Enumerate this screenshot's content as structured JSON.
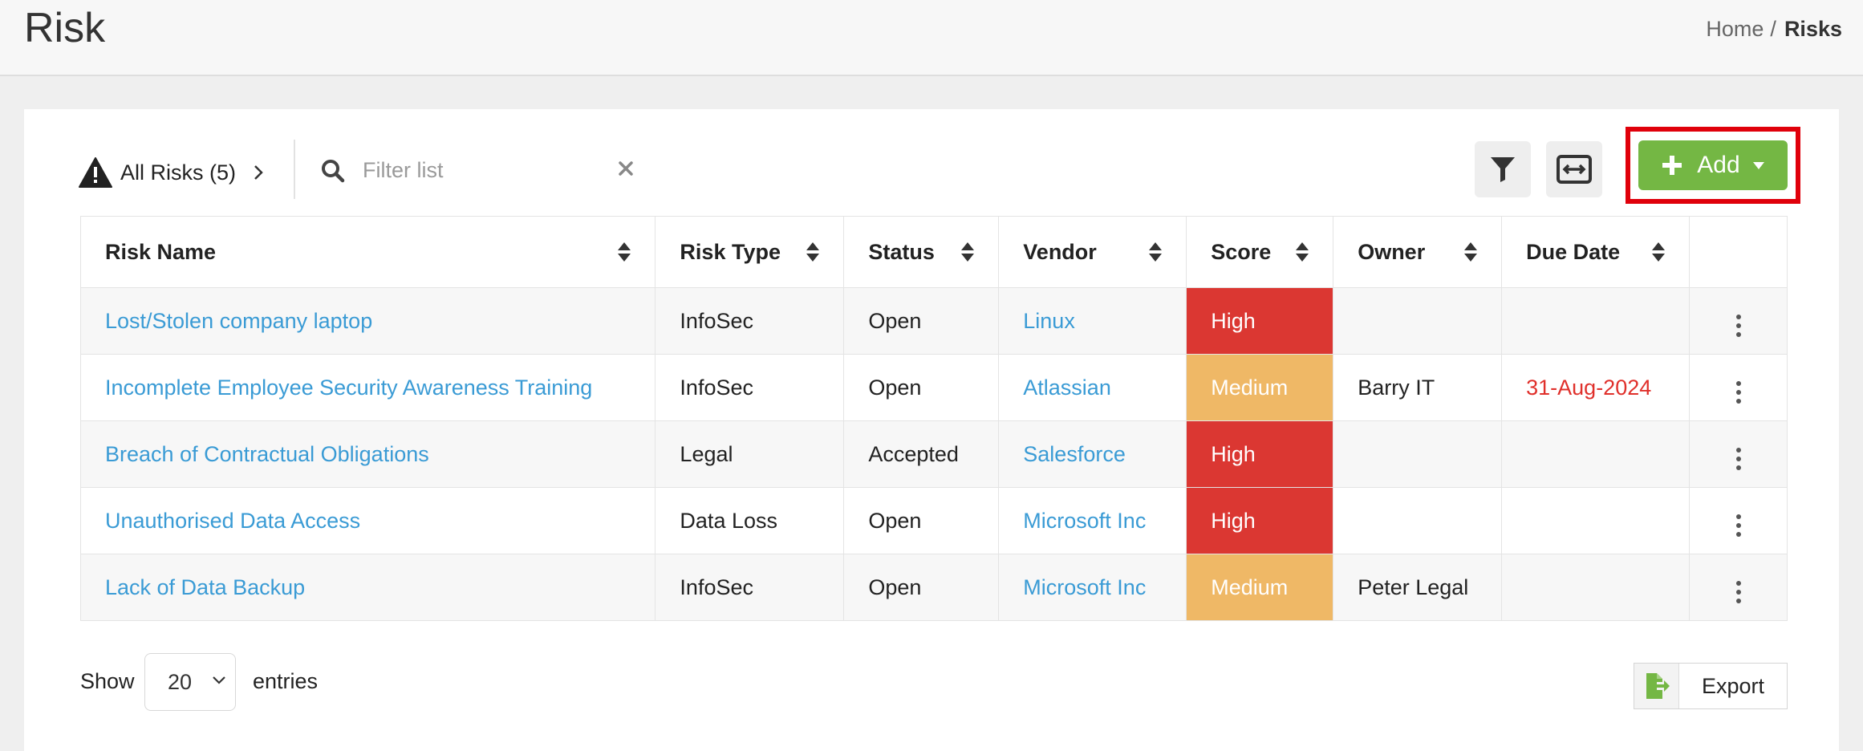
{
  "header": {
    "title": "Risk",
    "breadcrumb": {
      "home": "Home",
      "separator": "/",
      "current": "Risks"
    }
  },
  "toolbar": {
    "risk_filter_label": "All Risks (5)",
    "search": {
      "placeholder": "Filter list",
      "value": ""
    },
    "add_label": "Add",
    "icons": [
      "warning-icon",
      "chevron-right-icon",
      "search-icon",
      "close-icon",
      "filter-icon",
      "expand-horizontal-icon",
      "plus-icon",
      "caret-down-icon"
    ]
  },
  "table": {
    "headers": [
      "Risk Name",
      "Risk Type",
      "Status",
      "Vendor",
      "Score",
      "Owner",
      "Due Date"
    ],
    "rows": [
      {
        "name": "Lost/Stolen company laptop",
        "type": "InfoSec",
        "status": "Open",
        "vendor": "Linux",
        "score": "High",
        "owner": "",
        "due": ""
      },
      {
        "name": "Incomplete Employee Security Awareness Training",
        "type": "InfoSec",
        "status": "Open",
        "vendor": "Atlassian",
        "score": "Medium",
        "owner": "Barry IT",
        "due": "31-Aug-2024"
      },
      {
        "name": "Breach of Contractual Obligations",
        "type": "Legal",
        "status": "Accepted",
        "vendor": "Salesforce",
        "score": "High",
        "owner": "",
        "due": ""
      },
      {
        "name": "Unauthorised Data Access",
        "type": "Data Loss",
        "status": "Open",
        "vendor": "Microsoft Inc",
        "score": "High",
        "owner": "",
        "due": ""
      },
      {
        "name": "Lack of Data Backup",
        "type": "InfoSec",
        "status": "Open",
        "vendor": "Microsoft Inc",
        "score": "Medium",
        "owner": "Peter Legal",
        "due": ""
      }
    ]
  },
  "footer": {
    "show_label": "Show",
    "entries_value": "20",
    "entries_label": "entries",
    "export_label": "Export"
  },
  "colors": {
    "accent_green": "#74b744",
    "link_blue": "#3a9bd5",
    "score_high": "#db3732",
    "score_medium": "#efb866",
    "overdue_red": "#e0302b",
    "highlight_box": "#e0000b"
  }
}
